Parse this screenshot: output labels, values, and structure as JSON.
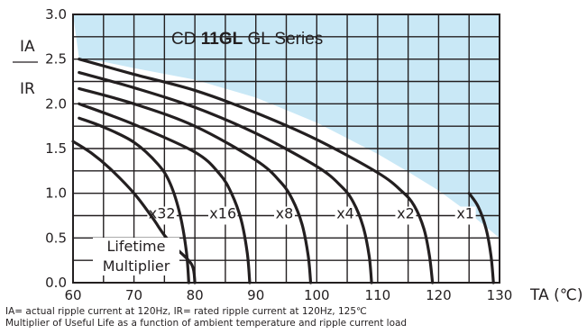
{
  "chart_data": {
    "type": "line",
    "title": {
      "prefix": "CD ",
      "bold": "11GL",
      "suffix": " GL Series"
    },
    "ylabel": {
      "numerator": "IA",
      "denominator": "IR"
    },
    "xlabel": "TA (℃)",
    "xlim": [
      60,
      130
    ],
    "ylim": [
      0,
      3.0
    ],
    "xticks": [
      60,
      70,
      80,
      90,
      100,
      110,
      120,
      130
    ],
    "yticks": [
      "0.0",
      "0.5",
      "1.0",
      "1.5",
      "2.0",
      "2.5",
      "3.0"
    ],
    "grid": true,
    "region_color": "#c9e8f6",
    "line_color": "#231f20",
    "region_boundary": [
      [
        61,
        2.5
      ],
      [
        65,
        2.47
      ],
      [
        70,
        2.4
      ],
      [
        80,
        2.27
      ],
      [
        90,
        2.07
      ],
      [
        100,
        1.79
      ],
      [
        110,
        1.44
      ],
      [
        115,
        1.24
      ],
      [
        120,
        1.03
      ],
      [
        125,
        0.78
      ],
      [
        130,
        0.5
      ]
    ],
    "series": [
      {
        "name": "x1",
        "label_x": 124.4,
        "label_y": 0.72,
        "points": [
          [
            125,
            1.0
          ],
          [
            126.5,
            0.85
          ],
          [
            127.8,
            0.6
          ],
          [
            128.6,
            0.3
          ],
          [
            129,
            0.0
          ]
        ]
      },
      {
        "name": "x2",
        "label_x": 114.6,
        "label_y": 0.72,
        "points": [
          [
            61,
            2.5
          ],
          [
            70,
            2.33
          ],
          [
            80,
            2.15
          ],
          [
            90,
            1.9
          ],
          [
            100,
            1.6
          ],
          [
            110,
            1.23
          ],
          [
            114,
            1.02
          ],
          [
            116,
            0.86
          ],
          [
            117.6,
            0.6
          ],
          [
            118.5,
            0.3
          ],
          [
            119,
            0.0
          ]
        ]
      },
      {
        "name": "x4",
        "label_x": 104.7,
        "label_y": 0.72,
        "points": [
          [
            61,
            2.35
          ],
          [
            70,
            2.18
          ],
          [
            80,
            1.96
          ],
          [
            90,
            1.67
          ],
          [
            100,
            1.3
          ],
          [
            104,
            1.08
          ],
          [
            106,
            0.9
          ],
          [
            107.6,
            0.63
          ],
          [
            108.6,
            0.3
          ],
          [
            109,
            0.0
          ]
        ]
      },
      {
        "name": "x8",
        "label_x": 94.7,
        "label_y": 0.72,
        "points": [
          [
            61,
            2.17
          ],
          [
            70,
            2.0
          ],
          [
            80,
            1.75
          ],
          [
            90,
            1.37
          ],
          [
            94,
            1.13
          ],
          [
            96,
            0.93
          ],
          [
            97.6,
            0.65
          ],
          [
            98.6,
            0.3
          ],
          [
            99,
            0.0
          ]
        ]
      },
      {
        "name": "x16",
        "label_x": 84.6,
        "label_y": 0.72,
        "points": [
          [
            61,
            2.0
          ],
          [
            70,
            1.77
          ],
          [
            80,
            1.46
          ],
          [
            84,
            1.22
          ],
          [
            86,
            1.0
          ],
          [
            87.6,
            0.7
          ],
          [
            88.6,
            0.33
          ],
          [
            89,
            0.0
          ]
        ]
      },
      {
        "name": "x32",
        "label_x": 74.6,
        "label_y": 0.72,
        "points": [
          [
            61,
            1.84
          ],
          [
            65,
            1.74
          ],
          [
            70,
            1.57
          ],
          [
            74,
            1.32
          ],
          [
            76,
            1.1
          ],
          [
            77.6,
            0.75
          ],
          [
            78.6,
            0.35
          ],
          [
            79,
            0.0
          ]
        ]
      },
      {
        "name": "",
        "label_x": null,
        "label_y": null,
        "points": [
          [
            60,
            1.58
          ],
          [
            63,
            1.45
          ],
          [
            66,
            1.28
          ],
          [
            70,
            1.0
          ],
          [
            73,
            0.73
          ],
          [
            75,
            0.53
          ],
          [
            77,
            0.38
          ],
          [
            79.5,
            0.2
          ],
          [
            80,
            0.0
          ]
        ]
      }
    ],
    "annotation": {
      "line1": "Lifetime",
      "line2": "Multiplier"
    }
  },
  "footnotes": {
    "line1": "IA= actual ripple current at 120Hz, IR= rated ripple current at 120Hz, 125℃",
    "line2": "Multiplier of Useful Life as a function of ambient temperature and ripple current load"
  }
}
